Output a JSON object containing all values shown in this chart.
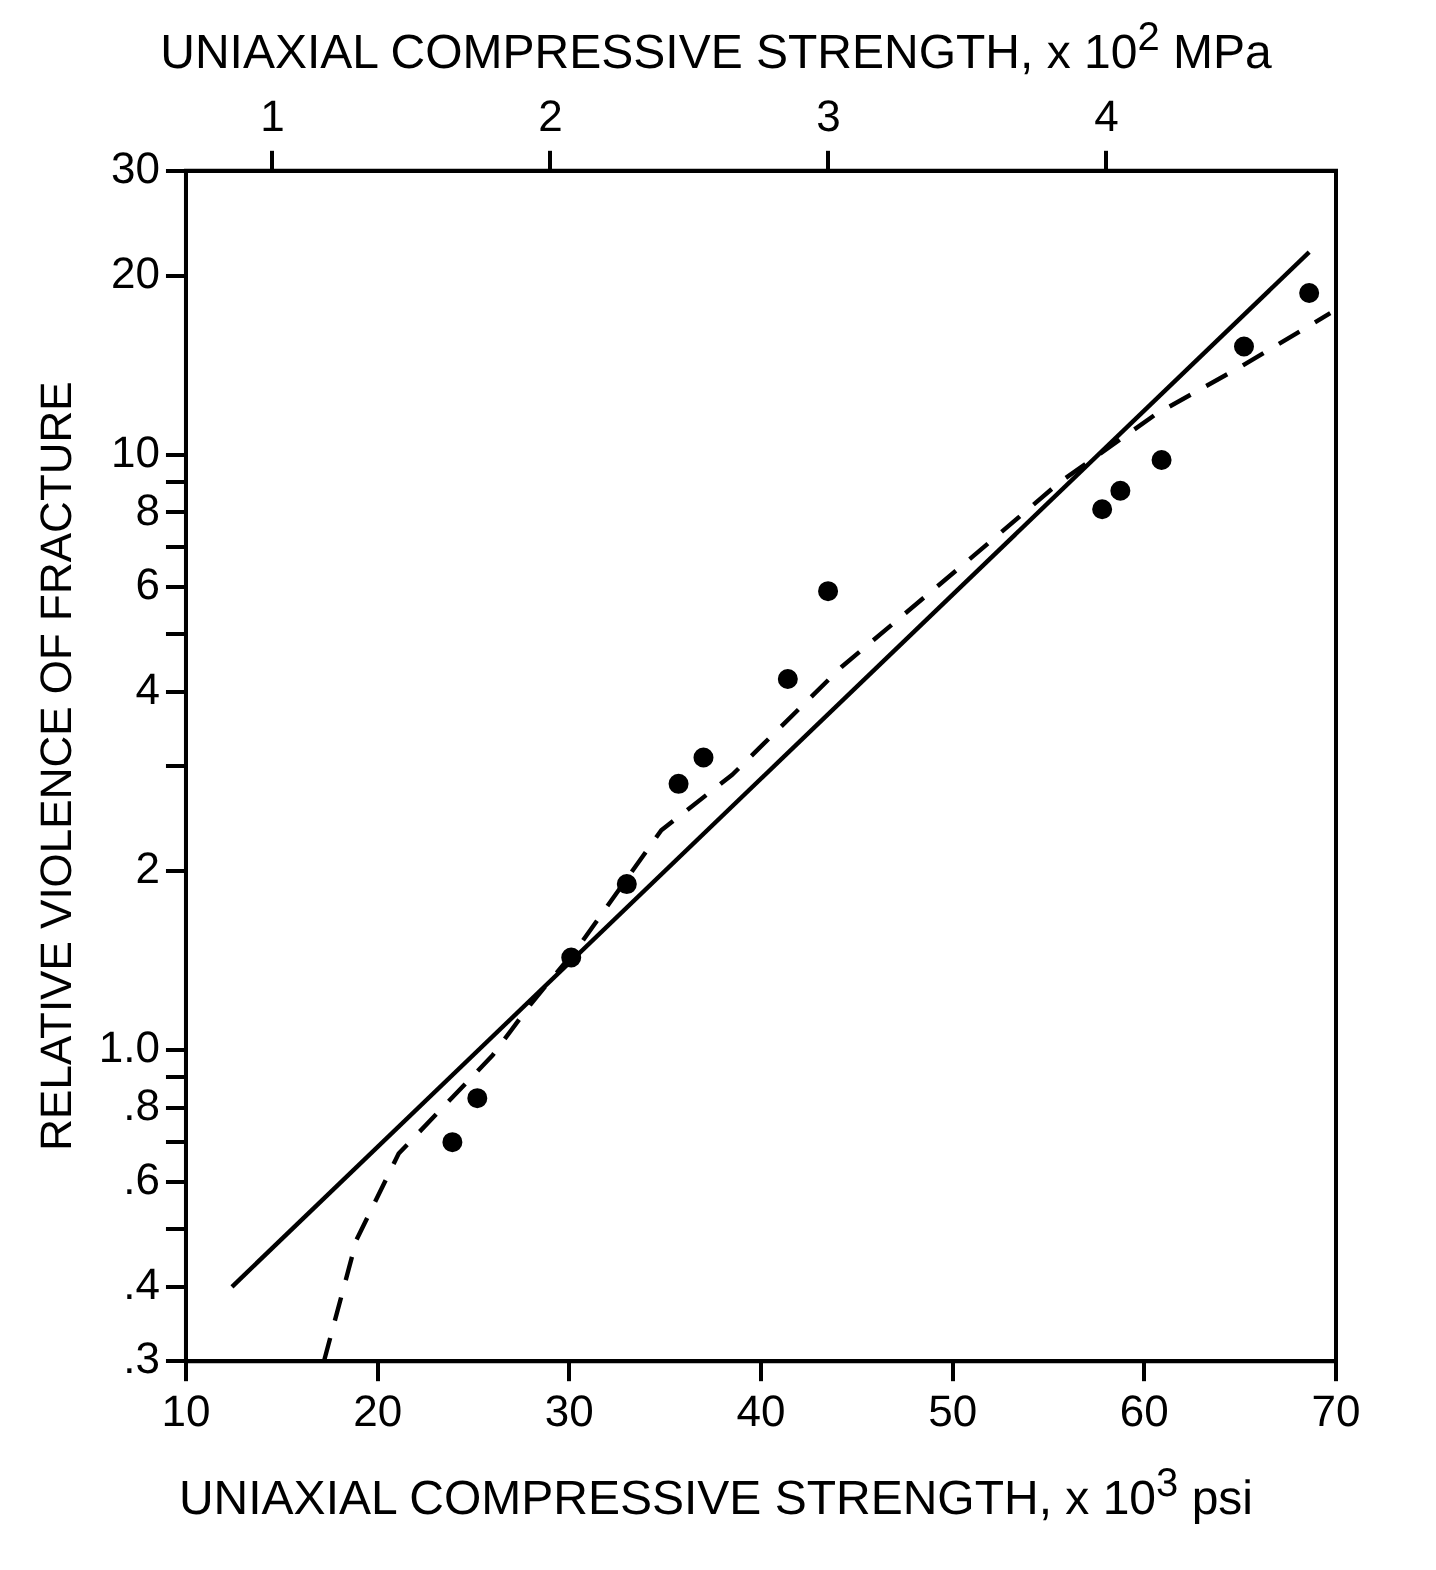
{
  "chart_data": {
    "type": "scatter",
    "xlabel": "UNIAXIAL COMPRESSIVE STRENGTH, x 10$^{3}$ psi",
    "x2label": "UNIAXIAL COMPRESSIVE STRENGTH, x 10$^{2}$ MPa",
    "ylabel": "RELATIVE VIOLENCE OF FRACTURE",
    "log": "y",
    "xlim": [
      10,
      70
    ],
    "xticks": [
      10,
      20,
      30,
      40,
      50,
      60,
      70
    ],
    "x2lim": [
      0.689,
      4.826
    ],
    "x2ticks": [
      1,
      2,
      3,
      4
    ],
    "ylim": [
      0.3,
      30
    ],
    "yticks": [
      {
        "value": 0.3,
        "label": ".3"
      },
      {
        "value": 0.4,
        "label": ".4"
      },
      {
        "value": 0.5,
        "label": null
      },
      {
        "value": 0.6,
        "label": ".6"
      },
      {
        "value": 0.7,
        "label": null
      },
      {
        "value": 0.8,
        "label": ".8"
      },
      {
        "value": 0.9,
        "label": null
      },
      {
        "value": 1,
        "label": "1.0"
      },
      2,
      {
        "value": 3,
        "label": null
      },
      4,
      {
        "value": 5,
        "label": null
      },
      6,
      {
        "value": 7,
        "label": null
      },
      8,
      {
        "value": 9,
        "label": null
      },
      10,
      20,
      30
    ],
    "series": [
      {
        "type": "scatter",
        "color": "#000000",
        "marker": "circle",
        "x": [
          23.9,
          25.2,
          30.1,
          33.0,
          35.7,
          37.0,
          41.4,
          43.5,
          57.8,
          58.75,
          60.9,
          65.2,
          68.6
        ],
        "values": [
          0.7,
          0.83,
          1.43,
          1.9,
          2.8,
          3.1,
          4.2,
          5.9,
          8.1,
          8.7,
          9.8,
          15.2,
          18.7
        ]
      },
      {
        "type": "line",
        "color": "#000000",
        "marker": "none",
        "line_style": "solid",
        "x": [
          12.4,
          68.6
        ],
        "values": [
          0.4,
          21.9
        ]
      },
      {
        "type": "line",
        "color": "#000000",
        "marker": "none",
        "line_style": "dashed",
        "x": [
          17.2,
          18.9,
          21.1,
          26.0,
          27.95,
          30.6,
          34.8,
          38.5,
          44.2,
          50.7,
          55.6,
          60.6,
          65.1,
          69.7
        ],
        "values": [
          0.3,
          0.48,
          0.67,
          0.98,
          1.19,
          1.51,
          2.34,
          2.9,
          4.4,
          6.6,
          9.0,
          11.7,
          14.1,
          17.3
        ]
      }
    ]
  }
}
